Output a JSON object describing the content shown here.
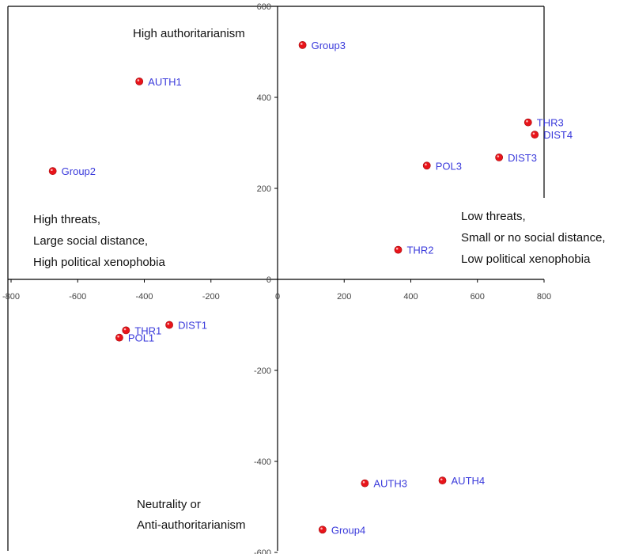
{
  "chart_data": {
    "type": "scatter",
    "xlim": [
      -800,
      800
    ],
    "ylim": [
      -600,
      600
    ],
    "x_ticks": [
      -800,
      -600,
      -400,
      -200,
      0,
      200,
      400,
      600,
      800
    ],
    "y_ticks": [
      -600,
      -400,
      -200,
      0,
      200,
      400,
      600
    ],
    "x_tick_labels": [
      "-800",
      "-600",
      "-400",
      "-200",
      "0",
      "200",
      "400",
      "600",
      "800"
    ],
    "y_tick_labels": [
      "-600",
      "-400",
      "-200",
      "0",
      "200",
      "400",
      "600"
    ],
    "grid": false,
    "point_color": "#e8141a",
    "label_color": "#3a3adb",
    "points": [
      {
        "label": "Group3",
        "x": 75,
        "y": 515
      },
      {
        "label": "AUTH1",
        "x": -415,
        "y": 435
      },
      {
        "label": "THR3",
        "x": 752,
        "y": 345
      },
      {
        "label": "DIST4",
        "x": 772,
        "y": 318
      },
      {
        "label": "DIST3",
        "x": 665,
        "y": 268
      },
      {
        "label": "POL3",
        "x": 448,
        "y": 250
      },
      {
        "label": "Group2",
        "x": -675,
        "y": 238
      },
      {
        "label": "THR2",
        "x": 362,
        "y": 65
      },
      {
        "label": "THR1",
        "x": -455,
        "y": -112
      },
      {
        "label": "DIST1",
        "x": -325,
        "y": -100
      },
      {
        "label": "POL1",
        "x": -475,
        "y": -128
      },
      {
        "label": "AUTH3",
        "x": 262,
        "y": -448
      },
      {
        "label": "AUTH4",
        "x": 495,
        "y": -442
      },
      {
        "label": "Group4",
        "x": 135,
        "y": -550
      }
    ],
    "annotations": [
      {
        "lines": [
          "High authoritarianism"
        ]
      },
      {
        "lines": [
          "High threats,",
          "Large social distance,",
          "High political xenophobia"
        ]
      },
      {
        "lines": [
          "Low threats,",
          "Small or no social distance,",
          "Low political xenophobia"
        ]
      },
      {
        "lines": [
          "Neutrality or",
          "Anti-authoritarianism"
        ]
      }
    ]
  }
}
